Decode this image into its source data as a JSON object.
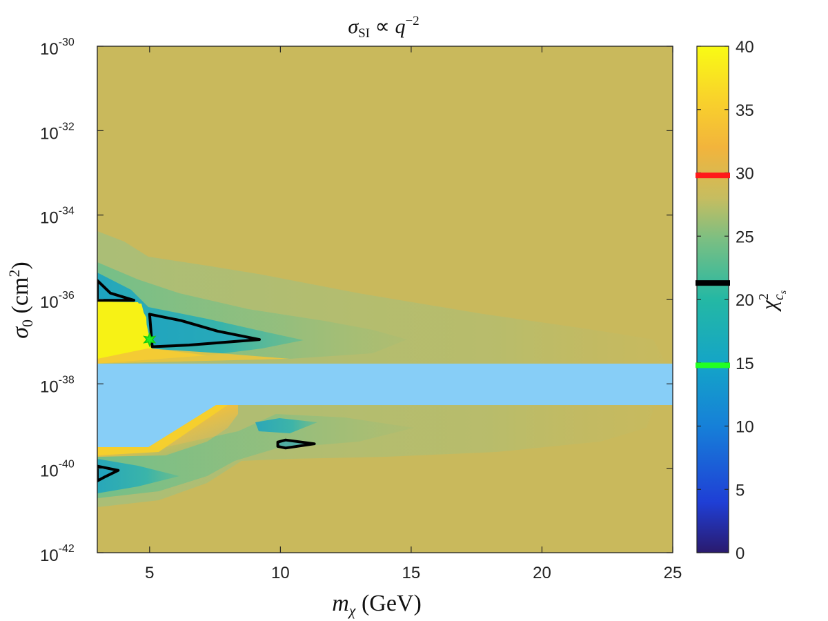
{
  "chart_data": {
    "type": "heatmap",
    "title": "σ_SI ∝ q^−2",
    "xlabel": "m_χ (GeV)",
    "ylabel": "σ_0 (cm²)",
    "colorbar_label": "χ²_{c_s}",
    "xlim": [
      3,
      25
    ],
    "ylim_log10": [
      -42,
      -30
    ],
    "y_scale": "log",
    "x_ticks": [
      "5",
      "10",
      "15",
      "20",
      "25"
    ],
    "y_ticks": [
      {
        "base": "10",
        "exp": "-30"
      },
      {
        "base": "10",
        "exp": "-32"
      },
      {
        "base": "10",
        "exp": "-34"
      },
      {
        "base": "10",
        "exp": "-36"
      },
      {
        "base": "10",
        "exp": "-38"
      },
      {
        "base": "10",
        "exp": "-40"
      },
      {
        "base": "10",
        "exp": "-42"
      }
    ],
    "colorbar": {
      "range": [
        0,
        40
      ],
      "ticks": [
        "40",
        "35",
        "30",
        "25",
        "20",
        "15",
        "10",
        "5",
        "0"
      ],
      "markers": [
        {
          "value": 29.8,
          "color": "#ff1a1a"
        },
        {
          "value": 21.3,
          "color": "#000000"
        },
        {
          "value": 14.8,
          "color": "#22ff22"
        }
      ]
    },
    "colors": {
      "background_level": "#c9b95c",
      "excluded_band": "#87cef7",
      "contour": "#000000",
      "best_fit_marker": "#22ee22"
    },
    "excluded_band_log10": [
      -38.5,
      -37.5
    ],
    "best_fit": {
      "x": 5.0,
      "y_log10": -36.95
    },
    "contours": [
      {
        "name": "region-a",
        "points": [
          [
            3.0,
            -35.55
          ],
          [
            3.5,
            -35.85
          ],
          [
            4.4,
            -36.02
          ],
          [
            3.0,
            -36.02
          ]
        ]
      },
      {
        "name": "region-b",
        "points": [
          [
            5.0,
            -36.35
          ],
          [
            6.2,
            -36.5
          ],
          [
            7.6,
            -36.75
          ],
          [
            9.2,
            -36.95
          ],
          [
            6.5,
            -37.08
          ],
          [
            5.1,
            -37.12
          ]
        ]
      },
      {
        "name": "region-c",
        "points": [
          [
            9.9,
            -39.38
          ],
          [
            10.2,
            -39.33
          ],
          [
            11.3,
            -39.42
          ],
          [
            10.2,
            -39.52
          ],
          [
            9.9,
            -39.48
          ]
        ]
      },
      {
        "name": "region-d",
        "points": [
          [
            3.0,
            -39.95
          ],
          [
            3.8,
            -40.05
          ],
          [
            3.3,
            -40.2
          ],
          [
            3.0,
            -40.3
          ]
        ]
      }
    ]
  }
}
